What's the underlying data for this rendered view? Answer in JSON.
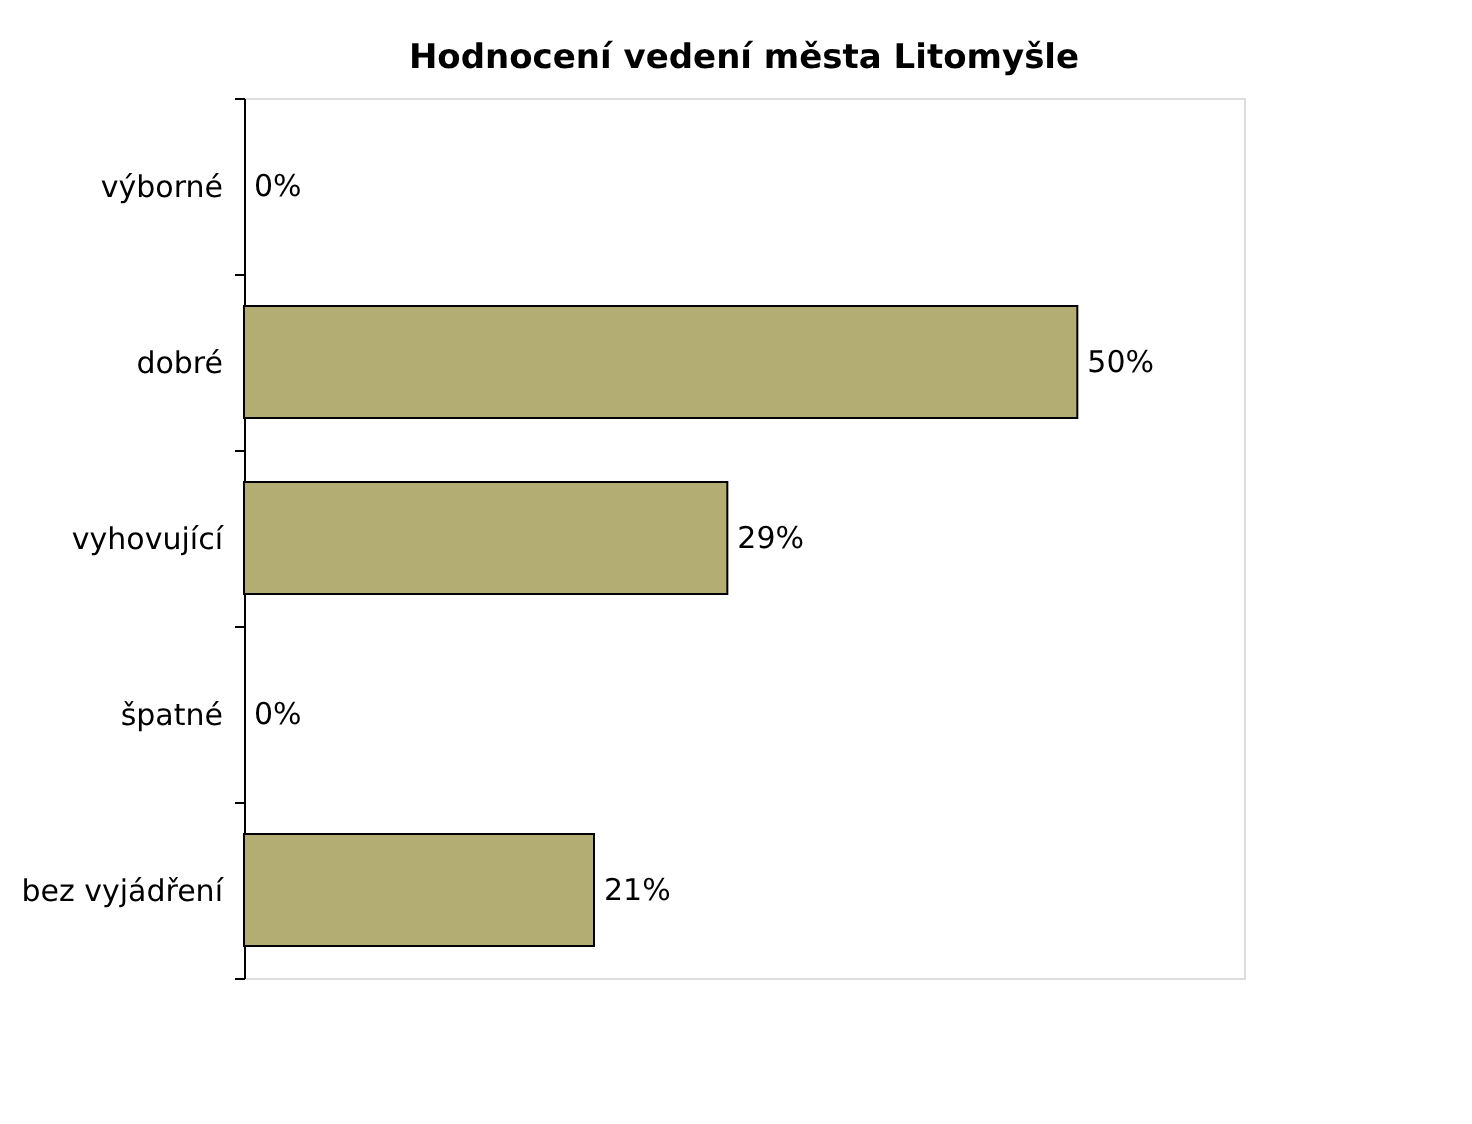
{
  "chart_data": {
    "type": "bar",
    "orientation": "horizontal",
    "title": "Hodnocení vedení města Litomyšle",
    "categories": [
      "výborné",
      "dobré",
      "vyhovující",
      "špatné",
      "bez vyjádření"
    ],
    "values": [
      0,
      50,
      29,
      0,
      21
    ],
    "value_labels": [
      "0%",
      "50%",
      "29%",
      "0%",
      "21%"
    ],
    "color": "#b3ad74",
    "xlim": [
      0,
      60
    ],
    "tick_labels": "y"
  }
}
